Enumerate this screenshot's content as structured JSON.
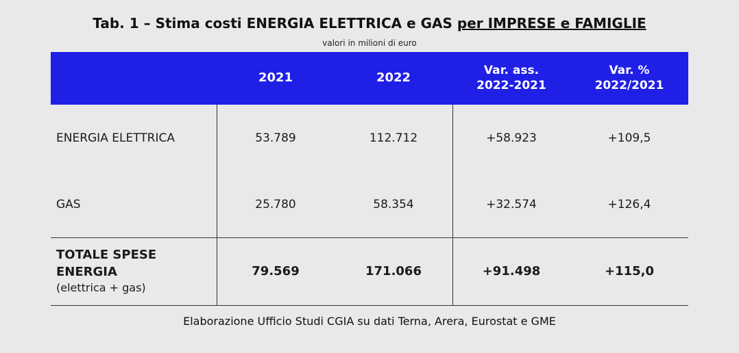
{
  "title": {
    "prefix": "Tab. 1 – Stima costi ENERGIA ELETTRICA e GAS ",
    "underlined": "per IMPRESE e FAMIGLIE"
  },
  "subtitle": "valori in milioni di euro",
  "table": {
    "headers": {
      "c1": "2021",
      "c2": "2022",
      "c3_line1": "Var. ass.",
      "c3_line2": "2022-2021",
      "c4_line1": "Var. %",
      "c4_line2": "2022/2021"
    },
    "rows": [
      {
        "label": "ENERGIA ELETTRICA",
        "v2021": "53.789",
        "v2022": "112.712",
        "var_ass": "+58.923",
        "var_pct": "+109,5"
      },
      {
        "label": "GAS",
        "v2021": "25.780",
        "v2022": "58.354",
        "var_ass": "+32.574",
        "var_pct": "+126,4"
      }
    ],
    "total": {
      "label_line1": "TOTALE SPESE",
      "label_line2": "ENERGIA",
      "label_sub": "(elettrica + gas)",
      "v2021": "79.569",
      "v2022": "171.066",
      "var_ass": "+91.498",
      "var_pct": "+115,0"
    }
  },
  "source": "Elaborazione Ufficio Studi CGIA su dati Terna, Arera, Eurostat e GME",
  "colors": {
    "background": "#e9e9e9",
    "header_bg": "#1f1fe6",
    "header_text": "#ffffff"
  }
}
